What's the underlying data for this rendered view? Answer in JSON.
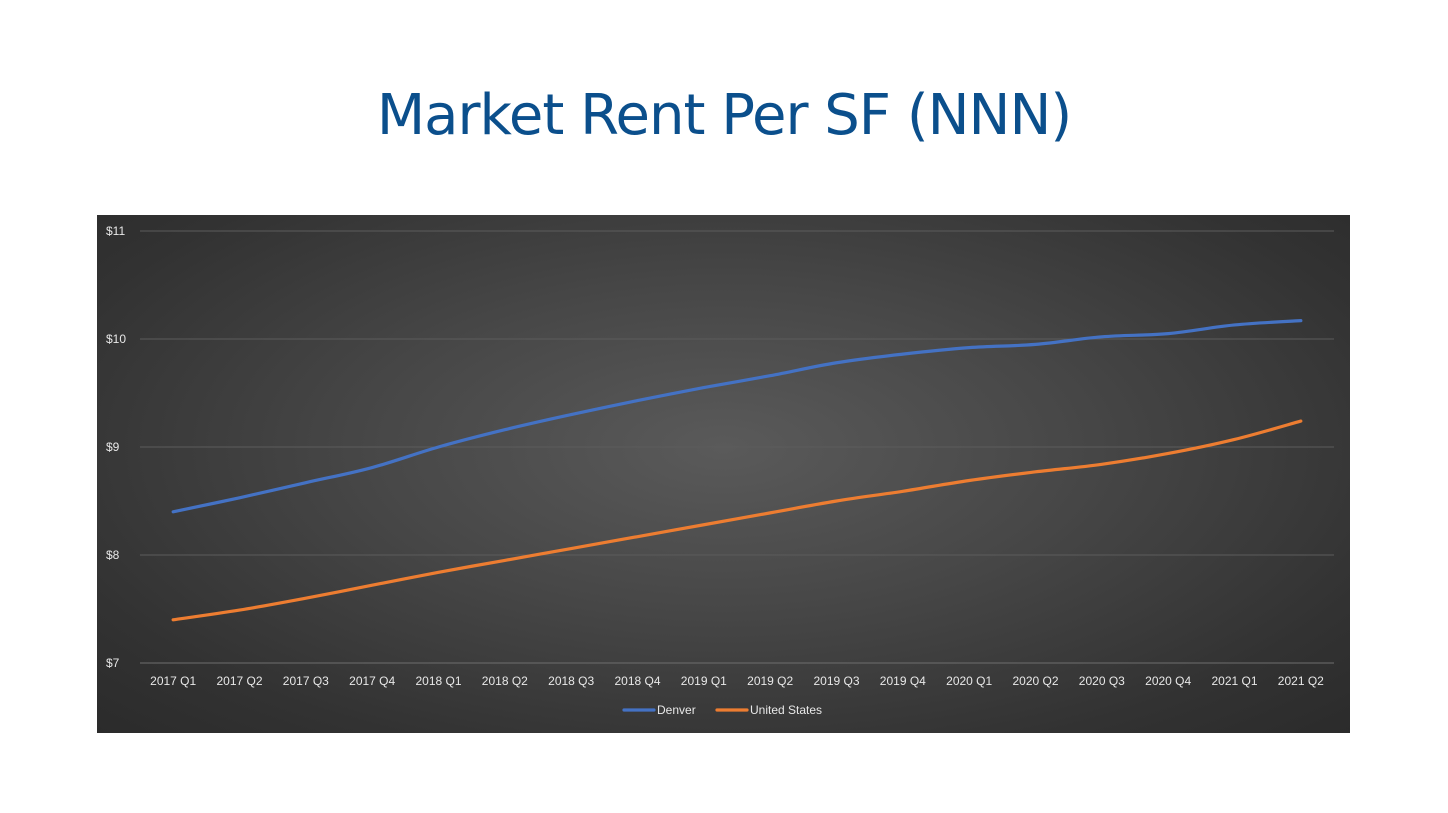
{
  "page": {
    "title": "Market Rent Per SF (NNN)"
  },
  "chart_data": {
    "type": "line",
    "title": "",
    "xlabel": "",
    "ylabel": "",
    "categories": [
      "2017 Q1",
      "2017 Q2",
      "2017 Q3",
      "2017 Q4",
      "2018 Q1",
      "2018 Q2",
      "2018 Q3",
      "2018 Q4",
      "2019 Q1",
      "2019 Q2",
      "2019 Q3",
      "2019 Q4",
      "2020 Q1",
      "2020 Q2",
      "2020 Q3",
      "2020 Q4",
      "2021 Q1",
      "2021 Q2"
    ],
    "series": [
      {
        "name": "Denver",
        "color": "#4472c4",
        "values": [
          8.4,
          8.53,
          8.67,
          8.81,
          9.0,
          9.16,
          9.3,
          9.43,
          9.55,
          9.66,
          9.78,
          9.86,
          9.92,
          9.95,
          10.02,
          10.05,
          10.13,
          10.17
        ]
      },
      {
        "name": "United States",
        "color": "#ed7d31",
        "values": [
          7.4,
          7.49,
          7.6,
          7.72,
          7.84,
          7.95,
          8.06,
          8.17,
          8.28,
          8.39,
          8.5,
          8.59,
          8.69,
          8.77,
          8.84,
          8.94,
          9.07,
          9.24
        ]
      }
    ],
    "yticks": [
      "$7",
      "$8",
      "$9",
      "$10",
      "$11"
    ],
    "ylim": [
      7,
      11
    ],
    "grid": true,
    "legend": "bottom"
  }
}
